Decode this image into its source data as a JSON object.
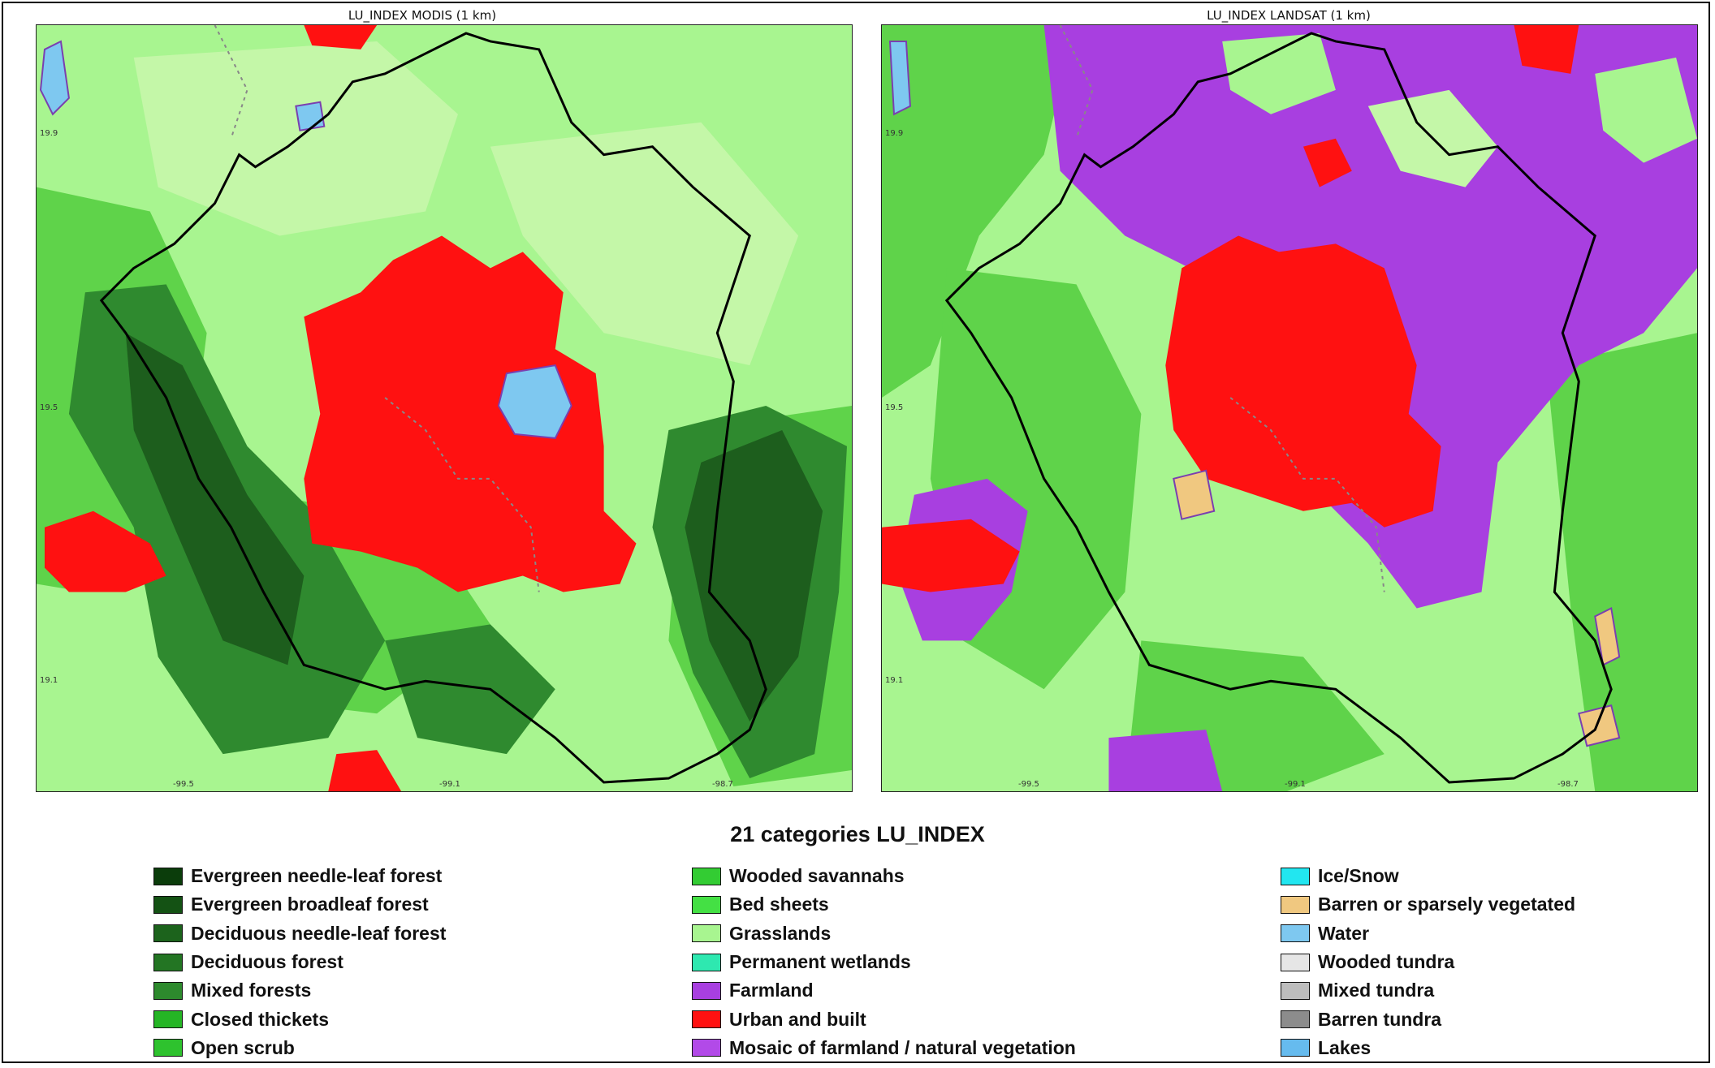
{
  "maps": {
    "left": {
      "title": "LU_INDEX MODIS (1 km)"
    },
    "right": {
      "title": "LU_INDEX LANDSAT (1 km)"
    }
  },
  "axes": {
    "y_ticks": [
      "19.9",
      "19.5",
      "19.1"
    ],
    "x_ticks": [
      "-99.5",
      "-99.1",
      "-98.7"
    ]
  },
  "legend": {
    "title": "21 categories LU_INDEX",
    "columns": [
      [
        {
          "label": "Evergreen needle-leaf forest",
          "color": "#0b3d0b"
        },
        {
          "label": "Evergreen broadleaf forest",
          "color": "#145214"
        },
        {
          "label": "Deciduous needle-leaf forest",
          "color": "#1c631c"
        },
        {
          "label": "Deciduous forest",
          "color": "#237523"
        },
        {
          "label": "Mixed forests",
          "color": "#2d8a2d"
        },
        {
          "label": "Closed thickets",
          "color": "#25b525"
        },
        {
          "label": "Open scrub",
          "color": "#2ec22e"
        }
      ],
      [
        {
          "label": "Wooded savannahs",
          "color": "#33cc33"
        },
        {
          "label": "Bed sheets",
          "color": "#44e044"
        },
        {
          "label": "Grasslands",
          "color": "#a8f590"
        },
        {
          "label": "Permanent wetlands",
          "color": "#2ee8b0"
        },
        {
          "label": "Farmland",
          "color": "#a83fe0"
        },
        {
          "label": "Urban and built",
          "color": "#ff1111"
        },
        {
          "label": "Mosaic of farmland / natural vegetation",
          "color": "#b24ae8"
        }
      ],
      [
        {
          "label": "Ice/Snow",
          "color": "#22e6f0"
        },
        {
          "label": "Barren or sparsely vegetated",
          "color": "#f0c880"
        },
        {
          "label": "Water",
          "color": "#7ec8f0"
        },
        {
          "label": "Wooded tundra",
          "color": "#e6e6e6"
        },
        {
          "label": "Mixed tundra",
          "color": "#bdbdbd"
        },
        {
          "label": "Barren tundra",
          "color": "#8c8c8c"
        },
        {
          "label": "Lakes",
          "color": "#66bbee"
        }
      ]
    ]
  },
  "map_colors": {
    "background": "#a8f590",
    "grass_alt": "#c4f7a8",
    "cropland": "#5fd34a",
    "forest_dark": "#1d5e1d",
    "forest_mid": "#2f8a2f",
    "urban": "#ff1111",
    "farmland": "#a83fe0",
    "water": "#7ec8f0",
    "barren": "#f0c880",
    "boundary": "#000000"
  }
}
